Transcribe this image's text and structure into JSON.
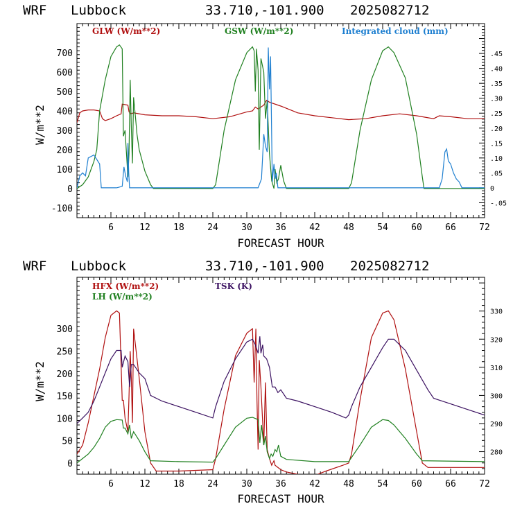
{
  "chart_data": [
    {
      "type": "line",
      "header": {
        "model": "WRF",
        "location": "Lubbock",
        "coords": "33.710,-101.900",
        "run": "2025082712"
      },
      "xlabel": "FORECAST HOUR",
      "ylabel": "W/m**2",
      "xlim": [
        0,
        72
      ],
      "ylim": [
        -150,
        850
      ],
      "y2lim": [
        -0.1,
        0.55
      ],
      "x_ticks": [
        6,
        12,
        18,
        24,
        30,
        36,
        42,
        48,
        54,
        60,
        66,
        72
      ],
      "y_ticks": [
        -100,
        0,
        100,
        200,
        300,
        400,
        500,
        600,
        700
      ],
      "y2_ticks": [
        "-.05",
        "0",
        ".05",
        ".10",
        ".15",
        ".20",
        ".25",
        ".30",
        ".35",
        ".40",
        ".45"
      ],
      "legend_placement": "top",
      "series": [
        {
          "name": "GLW (W/m**2)",
          "color": "#b01010",
          "axis": "left",
          "x": [
            0,
            0.5,
            1,
            2,
            3,
            4,
            4.5,
            5,
            6,
            7,
            7.8,
            8,
            9,
            9.2,
            9.5,
            10,
            12,
            15,
            18,
            21,
            24,
            27,
            30,
            31,
            31.5,
            32,
            33,
            33.5,
            34,
            36,
            39,
            42,
            45,
            48,
            51,
            54,
            57,
            60,
            63,
            64,
            66,
            69,
            72
          ],
          "y": [
            340,
            390,
            400,
            405,
            405,
            400,
            360,
            350,
            360,
            375,
            385,
            435,
            430,
            395,
            385,
            390,
            380,
            375,
            375,
            370,
            360,
            370,
            395,
            400,
            420,
            410,
            430,
            455,
            445,
            425,
            390,
            375,
            365,
            355,
            360,
            375,
            385,
            375,
            360,
            375,
            370,
            360,
            360
          ]
        },
        {
          "name": "GSW (W/m**2)",
          "color": "#208020",
          "axis": "left",
          "x": [
            0,
            1,
            2,
            3,
            3.5,
            4,
            5,
            6,
            7,
            7.5,
            8,
            8.2,
            8.5,
            9,
            9.2,
            9.4,
            9.6,
            9.8,
            10,
            10.3,
            10.6,
            11,
            12,
            13,
            13.5,
            24,
            24.5,
            26,
            28,
            30,
            31,
            31.3,
            31.5,
            31.7,
            32,
            32.2,
            32.5,
            33,
            33.3,
            33.6,
            34,
            34.4,
            34.8,
            35,
            35.3,
            35.6,
            36,
            36.5,
            37,
            48,
            48.5,
            50,
            52,
            54,
            55,
            56,
            58,
            60,
            61,
            61.3,
            72
          ],
          "y": [
            0,
            20,
            60,
            140,
            200,
            400,
            560,
            680,
            730,
            740,
            720,
            270,
            300,
            60,
            180,
            560,
            320,
            130,
            470,
            380,
            280,
            200,
            90,
            20,
            0,
            0,
            20,
            300,
            560,
            700,
            730,
            710,
            500,
            720,
            610,
            200,
            670,
            600,
            360,
            450,
            180,
            40,
            0,
            100,
            30,
            50,
            120,
            40,
            0,
            0,
            30,
            300,
            560,
            710,
            730,
            700,
            570,
            280,
            60,
            0,
            0
          ]
        },
        {
          "name": "Integrated cloud (mm)",
          "color": "#1e7fd0",
          "axis": "right",
          "x": [
            0,
            0.5,
            1,
            1.5,
            2,
            3,
            4,
            4.3,
            5,
            7,
            8,
            8.3,
            8.6,
            8.9,
            9,
            9.15,
            9.3,
            10,
            32,
            32.6,
            33,
            33.3,
            33.6,
            33.8,
            34,
            34.2,
            34.5,
            34.8,
            35,
            35.2,
            35.5,
            36,
            64,
            64.5,
            65,
            65.3,
            65.6,
            66,
            66.5,
            67,
            67.5,
            68,
            72
          ],
          "y": [
            0,
            0.04,
            0.05,
            0.04,
            0.1,
            0.11,
            0.08,
            0,
            0,
            0,
            0.005,
            0.07,
            0.04,
            0.02,
            0.15,
            0.05,
            0,
            0,
            0,
            0.03,
            0.18,
            0.14,
            0.12,
            0.47,
            0.33,
            0.44,
            0.02,
            0.08,
            0.03,
            0.05,
            0,
            0,
            0,
            0.03,
            0.12,
            0.13,
            0.09,
            0.08,
            0.05,
            0.03,
            0.02,
            0,
            0
          ]
        }
      ]
    },
    {
      "type": "line",
      "header": {
        "model": "WRF",
        "location": "Lubbock",
        "coords": "33.710,-101.900",
        "run": "2025082712"
      },
      "xlabel": "FORECAST HOUR",
      "ylabel": "W/m**2",
      "xlim": [
        0,
        72
      ],
      "ylim": [
        -25,
        415
      ],
      "y2lim": [
        272,
        342
      ],
      "x_ticks": [
        6,
        12,
        18,
        24,
        30,
        36,
        42,
        48,
        54,
        60,
        66,
        72
      ],
      "y_ticks": [
        0,
        50,
        100,
        150,
        200,
        250,
        300
      ],
      "y2_ticks": [
        280,
        290,
        300,
        310,
        320,
        330
      ],
      "legend_placement": "top-left",
      "series": [
        {
          "name": "HFX (W/m**2)",
          "color": "#b01010",
          "axis": "left",
          "x": [
            0,
            1,
            2,
            3,
            4,
            5,
            6,
            7,
            7.5,
            8,
            8.2,
            8.5,
            9,
            9.2,
            9.4,
            9.6,
            9.8,
            10,
            11,
            12,
            13,
            14,
            18,
            24,
            24.5,
            26,
            28,
            30,
            31,
            31.3,
            31.6,
            31.8,
            32,
            32.2,
            32.5,
            33,
            33.3,
            33.6,
            34,
            34.4,
            34.8,
            35,
            36,
            37,
            40,
            42,
            44,
            47,
            48,
            48.5,
            50,
            52,
            54,
            55,
            56,
            58,
            60,
            61,
            62,
            72
          ],
          "y": [
            20,
            40,
            90,
            150,
            210,
            280,
            330,
            340,
            335,
            140,
            140,
            100,
            70,
            150,
            250,
            190,
            90,
            300,
            190,
            70,
            0,
            -18,
            -18,
            -15,
            10,
            120,
            240,
            290,
            300,
            180,
            300,
            140,
            30,
            230,
            170,
            40,
            180,
            30,
            10,
            -5,
            5,
            -5,
            -15,
            -20,
            -28,
            -28,
            -18,
            -5,
            0,
            20,
            140,
            280,
            335,
            340,
            320,
            210,
            70,
            0,
            -10,
            -10
          ]
        },
        {
          "name": "LH (W/m**2)",
          "color": "#208020",
          "axis": "left",
          "x": [
            0,
            1,
            2,
            3,
            4,
            5,
            6,
            7,
            8,
            8.2,
            8.5,
            9,
            9.3,
            9.6,
            10,
            11,
            12,
            13,
            18,
            24,
            24.5,
            26,
            28,
            30,
            31,
            32,
            32.3,
            32.6,
            33,
            33.3,
            33.6,
            34,
            34.3,
            34.6,
            35,
            35.3,
            35.6,
            36,
            37,
            42,
            48,
            50,
            52,
            54,
            55,
            56,
            58,
            60,
            61,
            72
          ],
          "y": [
            0,
            10,
            20,
            35,
            55,
            80,
            93,
            97,
            96,
            78,
            78,
            65,
            85,
            55,
            70,
            50,
            25,
            5,
            3,
            2,
            10,
            40,
            80,
            100,
            102,
            97,
            45,
            85,
            40,
            60,
            25,
            10,
            20,
            15,
            30,
            25,
            40,
            15,
            8,
            3,
            3,
            40,
            80,
            97,
            95,
            85,
            55,
            20,
            5,
            3
          ]
        },
        {
          "name": "TSK (K)",
          "color": "#3a1060",
          "axis": "right",
          "x": [
            0,
            1,
            2,
            3,
            4,
            5,
            6,
            7,
            7.8,
            8,
            8.5,
            9,
            9.3,
            9.6,
            10,
            11,
            12,
            13,
            15,
            18,
            21,
            24,
            24.5,
            26,
            28,
            30,
            31,
            31.5,
            32,
            32.3,
            32.5,
            32.8,
            33,
            33.5,
            34,
            34.5,
            35,
            35.5,
            36,
            37,
            39,
            42,
            45,
            47.5,
            48,
            48.5,
            50,
            52,
            54,
            55,
            56,
            58,
            60,
            62,
            63,
            66,
            69,
            72
          ],
          "y": [
            290,
            292,
            294,
            298,
            303,
            308,
            313,
            316,
            316,
            310,
            314,
            312,
            303,
            311,
            311,
            308,
            306,
            300,
            298,
            296,
            294,
            292,
            296,
            305,
            313,
            319,
            320,
            318,
            315,
            321,
            315,
            318,
            314,
            313,
            310,
            303,
            303,
            301,
            302,
            299,
            298,
            296,
            294,
            292,
            293,
            296,
            303,
            310,
            317,
            320,
            320,
            316,
            309,
            302,
            299,
            297,
            295,
            293
          ]
        }
      ]
    }
  ]
}
